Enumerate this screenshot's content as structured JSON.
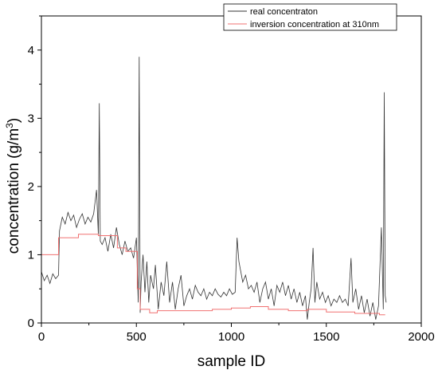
{
  "chart_data": {
    "type": "line",
    "xlabel": "sample ID",
    "ylabel": "concentration (g/m",
    "ylabel_sup": "3",
    "ylabel_suffix": ")",
    "xlim": [
      0,
      2000
    ],
    "ylim": [
      0,
      4.5
    ],
    "x_ticks": [
      0,
      500,
      1000,
      1500,
      2000
    ],
    "x_tick_labels": [
      "0",
      "500",
      "1000",
      "1500",
      "2000"
    ],
    "y_ticks": [
      0,
      1,
      2,
      3,
      4
    ],
    "y_tick_labels": [
      "0",
      "1",
      "2",
      "3",
      "4"
    ],
    "grid": false,
    "legend_position": "top-right",
    "series": [
      {
        "name": "real concentraton",
        "color": "#333333",
        "x": [
          0,
          15,
          30,
          45,
          60,
          75,
          90,
          95,
          110,
          125,
          140,
          155,
          170,
          185,
          200,
          215,
          230,
          245,
          260,
          275,
          290,
          300,
          305,
          310,
          320,
          335,
          350,
          365,
          380,
          395,
          410,
          425,
          440,
          455,
          470,
          485,
          500,
          510,
          515,
          520,
          525,
          535,
          545,
          555,
          565,
          575,
          590,
          600,
          615,
          630,
          645,
          660,
          675,
          690,
          705,
          720,
          735,
          750,
          765,
          780,
          795,
          810,
          825,
          840,
          855,
          870,
          885,
          900,
          915,
          930,
          945,
          960,
          975,
          990,
          1005,
          1020,
          1030,
          1040,
          1050,
          1060,
          1075,
          1090,
          1105,
          1120,
          1135,
          1150,
          1165,
          1180,
          1195,
          1210,
          1225,
          1240,
          1255,
          1270,
          1285,
          1300,
          1315,
          1330,
          1345,
          1360,
          1375,
          1390,
          1400,
          1410,
          1420,
          1430,
          1440,
          1450,
          1465,
          1480,
          1495,
          1510,
          1525,
          1540,
          1555,
          1570,
          1585,
          1600,
          1615,
          1630,
          1640,
          1655,
          1670,
          1685,
          1700,
          1715,
          1730,
          1745,
          1760,
          1775,
          1790,
          1800,
          1805,
          1810,
          1815
        ],
        "values": [
          0.75,
          0.62,
          0.7,
          0.58,
          0.72,
          0.65,
          0.7,
          1.35,
          1.55,
          1.45,
          1.62,
          1.5,
          1.58,
          1.4,
          1.52,
          1.6,
          1.45,
          1.55,
          1.48,
          1.6,
          1.95,
          1.3,
          3.22,
          1.2,
          1.15,
          1.25,
          1.05,
          1.3,
          1.1,
          1.4,
          1.15,
          1.0,
          1.2,
          1.05,
          1.1,
          0.95,
          1.25,
          0.3,
          3.9,
          0.15,
          0.6,
          1.0,
          0.45,
          0.9,
          0.3,
          0.7,
          0.5,
          0.85,
          0.2,
          0.6,
          0.4,
          0.9,
          0.3,
          0.6,
          0.2,
          0.5,
          0.7,
          0.25,
          0.4,
          0.5,
          0.35,
          0.55,
          0.45,
          0.4,
          0.5,
          0.35,
          0.45,
          0.4,
          0.5,
          0.42,
          0.38,
          0.45,
          0.4,
          0.5,
          0.42,
          0.45,
          1.25,
          0.9,
          0.75,
          0.6,
          0.7,
          0.5,
          0.55,
          0.45,
          0.6,
          0.3,
          0.5,
          0.6,
          0.35,
          0.5,
          0.25,
          0.55,
          0.45,
          0.6,
          0.4,
          0.55,
          0.35,
          0.5,
          0.3,
          0.45,
          0.25,
          0.4,
          0.05,
          0.3,
          0.5,
          1.1,
          0.3,
          0.6,
          0.35,
          0.45,
          0.3,
          0.4,
          0.25,
          0.35,
          0.3,
          0.4,
          0.3,
          0.35,
          0.25,
          0.95,
          0.3,
          0.5,
          0.2,
          0.4,
          0.15,
          0.35,
          0.1,
          0.3,
          0.05,
          0.25,
          1.4,
          0.2,
          3.38,
          0.4,
          0.3
        ]
      },
      {
        "name": "inversion concentration at 310nm",
        "color": "#f07070",
        "x": [
          0,
          90,
          90,
          195,
          195,
          300,
          300,
          400,
          400,
          445,
          445,
          505,
          505,
          520,
          520,
          570,
          570,
          610,
          610,
          900,
          900,
          1000,
          1000,
          1100,
          1100,
          1195,
          1195,
          1300,
          1300,
          1400,
          1400,
          1500,
          1500,
          1650,
          1650,
          1780,
          1780,
          1810
        ],
        "values": [
          1.0,
          1.0,
          1.25,
          1.25,
          1.3,
          1.3,
          1.28,
          1.28,
          1.1,
          1.1,
          1.05,
          1.05,
          0.5,
          0.5,
          0.2,
          0.2,
          0.15,
          0.15,
          0.18,
          0.18,
          0.2,
          0.2,
          0.22,
          0.22,
          0.24,
          0.24,
          0.2,
          0.2,
          0.18,
          0.18,
          0.2,
          0.2,
          0.16,
          0.16,
          0.14,
          0.14,
          0.12,
          0.12
        ]
      }
    ]
  }
}
